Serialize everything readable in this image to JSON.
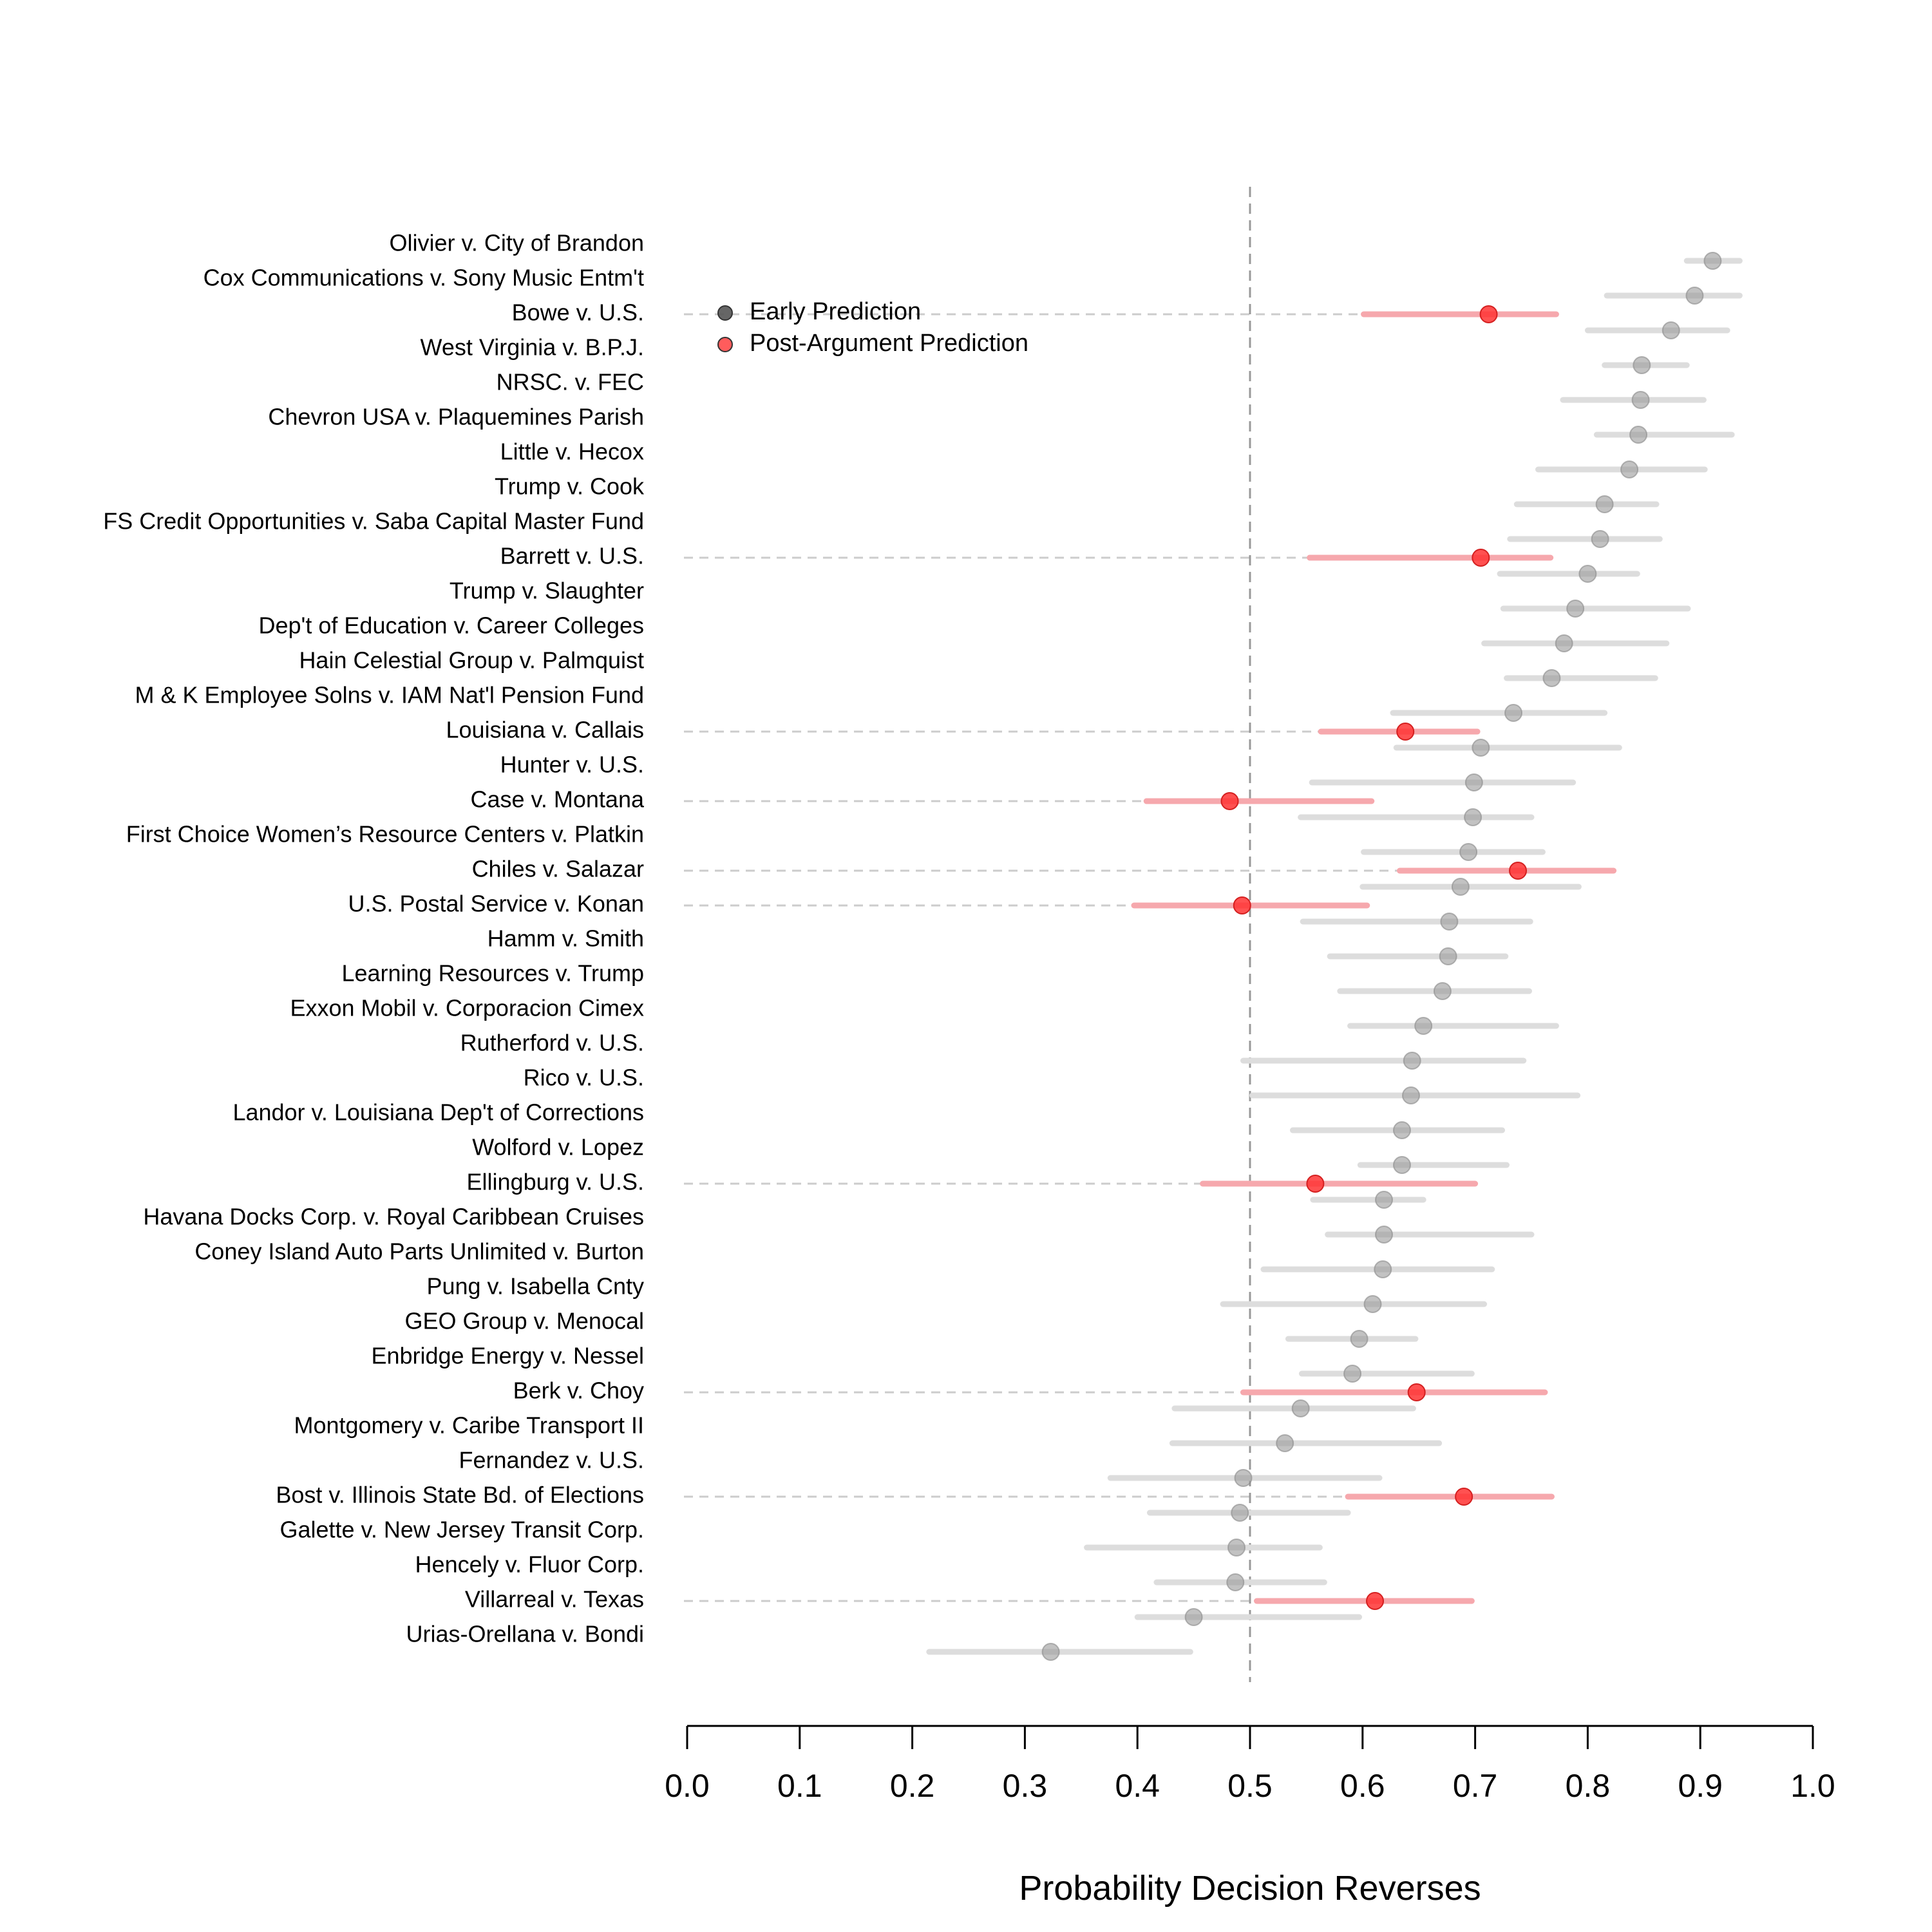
{
  "chart_data": {
    "type": "scatter",
    "xlabel": "Probability Decision Reverses",
    "xlim": [
      0.0,
      1.0
    ],
    "x_ticks": [
      "0.0",
      "0.1",
      "0.2",
      "0.3",
      "0.4",
      "0.5",
      "0.6",
      "0.7",
      "0.8",
      "0.9",
      "1.0"
    ],
    "reference_line": 0.5,
    "legend": {
      "placement": "top-left",
      "items": [
        {
          "label": "Early Prediction",
          "color": "#555555"
        },
        {
          "label": "Post-Argument Prediction",
          "color": "#ff3333"
        }
      ]
    },
    "colors": {
      "early_point": "#999999",
      "early_interval": "#dddddd",
      "post_point": "#ff3333",
      "post_interval": "#f6a8ad",
      "guide": "#cccccc",
      "reference": "#999999"
    },
    "cases": [
      {
        "label": "Olivier v. City of Brandon",
        "early": 0.911,
        "early_lo": 0.888,
        "early_hi": 0.935
      },
      {
        "label": "Cox Communications v. Sony Music Entm't",
        "early": 0.895,
        "early_lo": 0.817,
        "early_hi": 0.935
      },
      {
        "label": "Bowe v. U.S.",
        "early": 0.874,
        "early_lo": 0.8,
        "early_hi": 0.924,
        "post": 0.712,
        "post_lo": 0.601,
        "post_hi": 0.772
      },
      {
        "label": "West Virginia v. B.P.J.",
        "early": 0.848,
        "early_lo": 0.815,
        "early_hi": 0.888
      },
      {
        "label": "NRSC. v. FEC",
        "early": 0.847,
        "early_lo": 0.778,
        "early_hi": 0.903
      },
      {
        "label": "Chevron USA v. Plaquemines Parish",
        "early": 0.845,
        "early_lo": 0.808,
        "early_hi": 0.928
      },
      {
        "label": "Little v. Hecox",
        "early": 0.837,
        "early_lo": 0.756,
        "early_hi": 0.904
      },
      {
        "label": "Trump v. Cook",
        "early": 0.815,
        "early_lo": 0.737,
        "early_hi": 0.861
      },
      {
        "label": "FS Credit Opportunities v. Saba Capital Master Fund",
        "early": 0.811,
        "early_lo": 0.731,
        "early_hi": 0.864
      },
      {
        "label": "Barrett v. U.S.",
        "early": 0.8,
        "early_lo": 0.722,
        "early_hi": 0.844,
        "post": 0.705,
        "post_lo": 0.553,
        "post_hi": 0.767
      },
      {
        "label": "Trump v. Slaughter",
        "early": 0.789,
        "early_lo": 0.725,
        "early_hi": 0.889
      },
      {
        "label": "Dep't of Education v. Career Colleges",
        "early": 0.779,
        "early_lo": 0.708,
        "early_hi": 0.87
      },
      {
        "label": "Hain Celestial Group v. Palmquist",
        "early": 0.768,
        "early_lo": 0.728,
        "early_hi": 0.86
      },
      {
        "label": "M & K Employee Solns v. IAM Nat'l Pension Fund",
        "early": 0.734,
        "early_lo": 0.627,
        "early_hi": 0.815
      },
      {
        "label": "Louisiana v. Callais",
        "early": 0.705,
        "early_lo": 0.63,
        "early_hi": 0.828,
        "post": 0.638,
        "post_lo": 0.563,
        "post_hi": 0.702
      },
      {
        "label": "Hunter v. U.S.",
        "early": 0.699,
        "early_lo": 0.555,
        "early_hi": 0.787
      },
      {
        "label": "Case v. Montana",
        "early": 0.698,
        "early_lo": 0.545,
        "early_hi": 0.75,
        "post": 0.482,
        "post_lo": 0.408,
        "post_hi": 0.608
      },
      {
        "label": "First Choice Women’s Resource Centers v. Platkin",
        "early": 0.694,
        "early_lo": 0.601,
        "early_hi": 0.76
      },
      {
        "label": "Chiles v. Salazar",
        "early": 0.687,
        "early_lo": 0.6,
        "early_hi": 0.792,
        "post": 0.738,
        "post_lo": 0.633,
        "post_hi": 0.823
      },
      {
        "label": "U.S. Postal Service v. Konan",
        "early": 0.677,
        "early_lo": 0.547,
        "early_hi": 0.749,
        "post": 0.493,
        "post_lo": 0.397,
        "post_hi": 0.604
      },
      {
        "label": "Hamm v. Smith",
        "early": 0.676,
        "early_lo": 0.571,
        "early_hi": 0.727
      },
      {
        "label": "Learning Resources v. Trump",
        "early": 0.671,
        "early_lo": 0.58,
        "early_hi": 0.748
      },
      {
        "label": "Exxon Mobil v. Corporacion Cimex",
        "early": 0.654,
        "early_lo": 0.589,
        "early_hi": 0.772
      },
      {
        "label": "Rutherford v. U.S.",
        "early": 0.644,
        "early_lo": 0.494,
        "early_hi": 0.743
      },
      {
        "label": "Rico v. U.S.",
        "early": 0.643,
        "early_lo": 0.502,
        "early_hi": 0.791
      },
      {
        "label": "Landor v. Louisiana Dep't of Corrections",
        "early": 0.635,
        "early_lo": 0.538,
        "early_hi": 0.724
      },
      {
        "label": "Wolford v. Lopez",
        "early": 0.635,
        "early_lo": 0.598,
        "early_hi": 0.728
      },
      {
        "label": "Ellingburg v. U.S.",
        "early": 0.619,
        "early_lo": 0.556,
        "early_hi": 0.654,
        "post": 0.558,
        "post_lo": 0.458,
        "post_hi": 0.7
      },
      {
        "label": "Havana Docks Corp. v. Royal Caribbean Cruises",
        "early": 0.619,
        "early_lo": 0.569,
        "early_hi": 0.75
      },
      {
        "label": "Coney Island Auto Parts Unlimited v. Burton",
        "early": 0.618,
        "early_lo": 0.512,
        "early_hi": 0.715
      },
      {
        "label": "Pung v. Isabella Cnty",
        "early": 0.609,
        "early_lo": 0.476,
        "early_hi": 0.708
      },
      {
        "label": "GEO Group v. Menocal",
        "early": 0.597,
        "early_lo": 0.534,
        "early_hi": 0.647
      },
      {
        "label": "Enbridge Energy v. Nessel",
        "early": 0.591,
        "early_lo": 0.546,
        "early_hi": 0.697
      },
      {
        "label": "Berk v. Choy",
        "early": 0.545,
        "early_lo": 0.433,
        "early_hi": 0.645,
        "post": 0.648,
        "post_lo": 0.494,
        "post_hi": 0.762
      },
      {
        "label": "Montgomery v. Caribe Transport II",
        "early": 0.531,
        "early_lo": 0.431,
        "early_hi": 0.668
      },
      {
        "label": "Fernandez v. U.S.",
        "early": 0.494,
        "early_lo": 0.376,
        "early_hi": 0.615
      },
      {
        "label": "Bost v. Illinois State Bd. of Elections",
        "early": 0.491,
        "early_lo": 0.411,
        "early_hi": 0.587,
        "post": 0.69,
        "post_lo": 0.587,
        "post_hi": 0.768
      },
      {
        "label": "Galette v. New Jersey Transit Corp.",
        "early": 0.488,
        "early_lo": 0.355,
        "early_hi": 0.562
      },
      {
        "label": "Hencely v. Fluor Corp.",
        "early": 0.487,
        "early_lo": 0.417,
        "early_hi": 0.566
      },
      {
        "label": "Villarreal v. Texas",
        "early": 0.45,
        "early_lo": 0.4,
        "early_hi": 0.597,
        "post": 0.611,
        "post_lo": 0.506,
        "post_hi": 0.697
      },
      {
        "label": "Urias-Orellana v. Bondi",
        "early": 0.323,
        "early_lo": 0.215,
        "early_hi": 0.447
      }
    ]
  }
}
